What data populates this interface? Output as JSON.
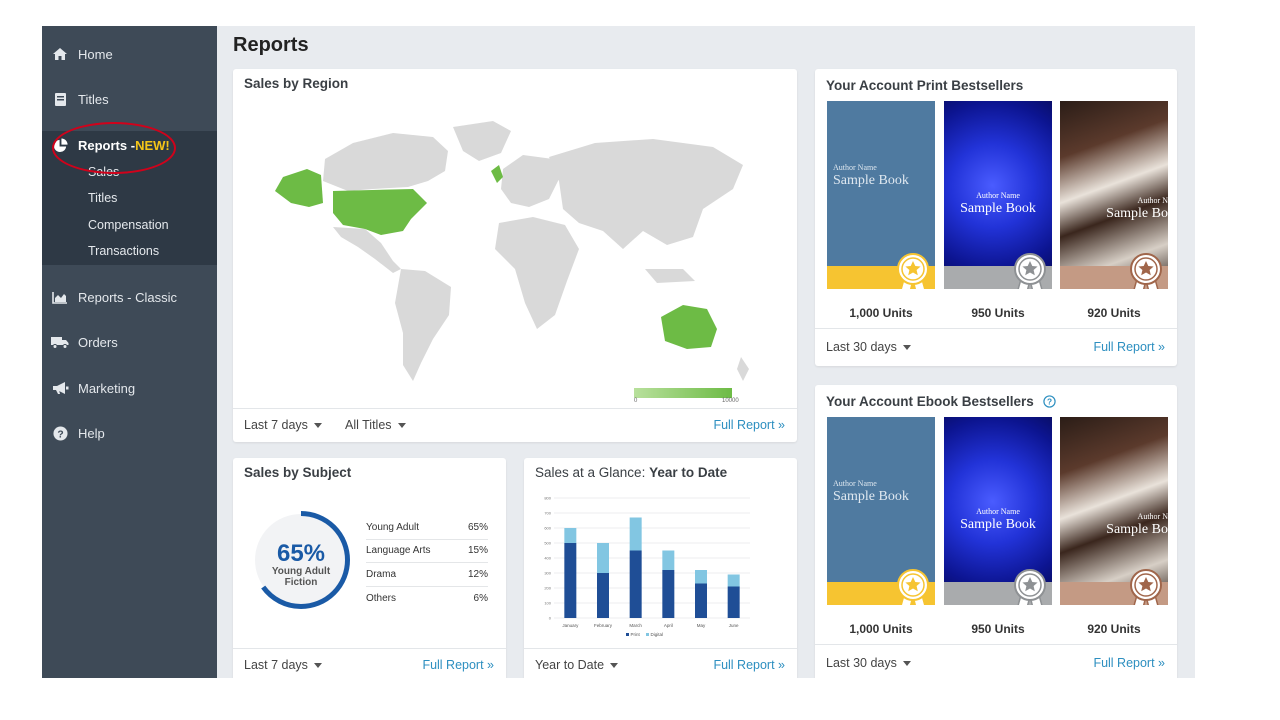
{
  "page_title": "Reports",
  "sidebar": {
    "items": [
      {
        "label": "Home",
        "icon": "home-icon"
      },
      {
        "label": "Titles",
        "icon": "book-icon"
      },
      {
        "label": "Reports - ",
        "new_tag": "NEW!",
        "icon": "pie-chart-icon"
      },
      {
        "label": "Reports - Classic",
        "icon": "area-chart-icon"
      },
      {
        "label": "Orders",
        "icon": "truck-icon"
      },
      {
        "label": "Marketing",
        "icon": "megaphone-icon"
      },
      {
        "label": "Help",
        "icon": "question-circle-icon"
      }
    ],
    "subitems": [
      "Sales",
      "Titles",
      "Compensation",
      "Transactions"
    ]
  },
  "sales_by_region": {
    "title": "Sales by Region",
    "scale_min": "0",
    "scale_max": "10000",
    "period": "Last 7 days",
    "filter": "All Titles",
    "full_report": "Full Report »"
  },
  "sales_by_subject": {
    "title": "Sales by Subject",
    "donut_percent_label": "65%",
    "donut_percent": 65,
    "donut_caption_1": "Young Adult",
    "donut_caption_2": "Fiction",
    "rows": [
      {
        "label": "Young Adult",
        "value": "65%"
      },
      {
        "label": "Language Arts",
        "value": "15%"
      },
      {
        "label": "Drama",
        "value": "12%"
      },
      {
        "label": "Others",
        "value": "6%"
      }
    ],
    "period": "Last 7 days",
    "full_report": "Full Report »"
  },
  "sales_glance": {
    "title_prefix": "Sales at a Glance: ",
    "title_bold": "Year to Date",
    "period": "Year to Date",
    "full_report": "Full Report »"
  },
  "chart_data": {
    "type": "bar",
    "stacked": true,
    "categories": [
      "January",
      "February",
      "March",
      "April",
      "May",
      "June"
    ],
    "series": [
      {
        "name": "Print",
        "values": [
          500,
          300,
          450,
          320,
          230,
          210
        ],
        "color": "#1f4e96"
      },
      {
        "name": "Digital",
        "values": [
          100,
          200,
          220,
          130,
          90,
          80
        ],
        "color": "#82c6e2"
      }
    ],
    "ylim": [
      0,
      800
    ],
    "grid": true,
    "legend": "bottom"
  },
  "print_bestsellers": {
    "title": "Your Account Print Bestsellers",
    "books": [
      {
        "author": "Author Name",
        "title": "Sample Book",
        "units": "1,000 Units"
      },
      {
        "author": "Author Name",
        "title": "Sample Book",
        "units": "950 Units"
      },
      {
        "author": "Author N",
        "title": "Sample Bo",
        "units": "920 Units"
      }
    ],
    "period": "Last 30 days",
    "full_report": "Full Report »"
  },
  "ebook_bestsellers": {
    "title": "Your Account Ebook Bestsellers",
    "books": [
      {
        "author": "Author Name",
        "title": "Sample Book",
        "units": "1,000 Units"
      },
      {
        "author": "Author Name",
        "title": "Sample Book",
        "units": "950 Units"
      },
      {
        "author": "Author N",
        "title": "Sample Bo",
        "units": "920 Units"
      }
    ],
    "period": "Last 30 days",
    "full_report": "Full Report »"
  },
  "colors": {
    "sidebar": "#3e4a57",
    "accent_blue": "#2d8fc0",
    "map_highlight": "#6dbb45",
    "map_base": "#d9d9d9",
    "gold": "#f6c431",
    "silver": "#a9abad",
    "bronze": "#c49a84",
    "donut": "#1a5aa6"
  }
}
